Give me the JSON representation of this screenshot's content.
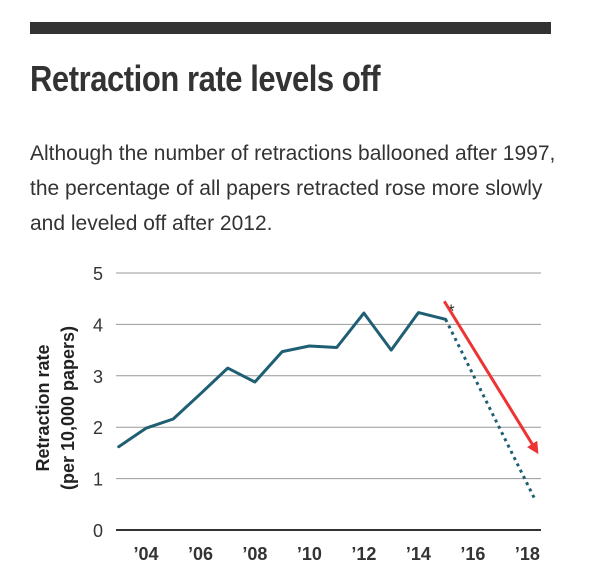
{
  "header": {
    "title": "Retraction rate levels off",
    "subtitle": "Although the number of retractions ballooned after 1997, the percentage of all papers retracted rose more slowly and leveled off after 2012."
  },
  "chart_data": {
    "type": "line",
    "ylabel_line1": "Retraction rate",
    "ylabel_line2": "(per 10,000 papers)",
    "ylim": [
      0,
      5
    ],
    "yticks": [
      "0",
      "1",
      "2",
      "3",
      "4",
      "5"
    ],
    "xlim": [
      2002.9,
      2018.5
    ],
    "xticks": [
      {
        "label": "’04",
        "value": 2004
      },
      {
        "label": "’06",
        "value": 2006
      },
      {
        "label": "’08",
        "value": 2008
      },
      {
        "label": "’10",
        "value": 2010
      },
      {
        "label": "’12",
        "value": 2012
      },
      {
        "label": "’14",
        "value": 2014
      },
      {
        "label": "’16",
        "value": 2016
      },
      {
        "label": "’18",
        "value": 2018
      }
    ],
    "grid": true,
    "series": [
      {
        "style": "solid",
        "color": "#1f5f73",
        "x": [
          2003,
          2004,
          2005,
          2006,
          2007,
          2008,
          2009,
          2010,
          2011,
          2012,
          2013,
          2014,
          2015
        ],
        "y": [
          1.62,
          1.98,
          2.16,
          2.65,
          3.15,
          2.88,
          3.47,
          3.58,
          3.55,
          4.22,
          3.5,
          4.23,
          4.1
        ]
      },
      {
        "style": "dotted",
        "color": "#1f5f73",
        "x": [
          2015,
          2018.3
        ],
        "y": [
          4.1,
          0.57
        ]
      }
    ],
    "annotation": "*",
    "overlay_arrow": {
      "color": "#ee3333",
      "from": [
        2014.95,
        4.45
      ],
      "to": [
        2018.4,
        1.4
      ]
    }
  }
}
